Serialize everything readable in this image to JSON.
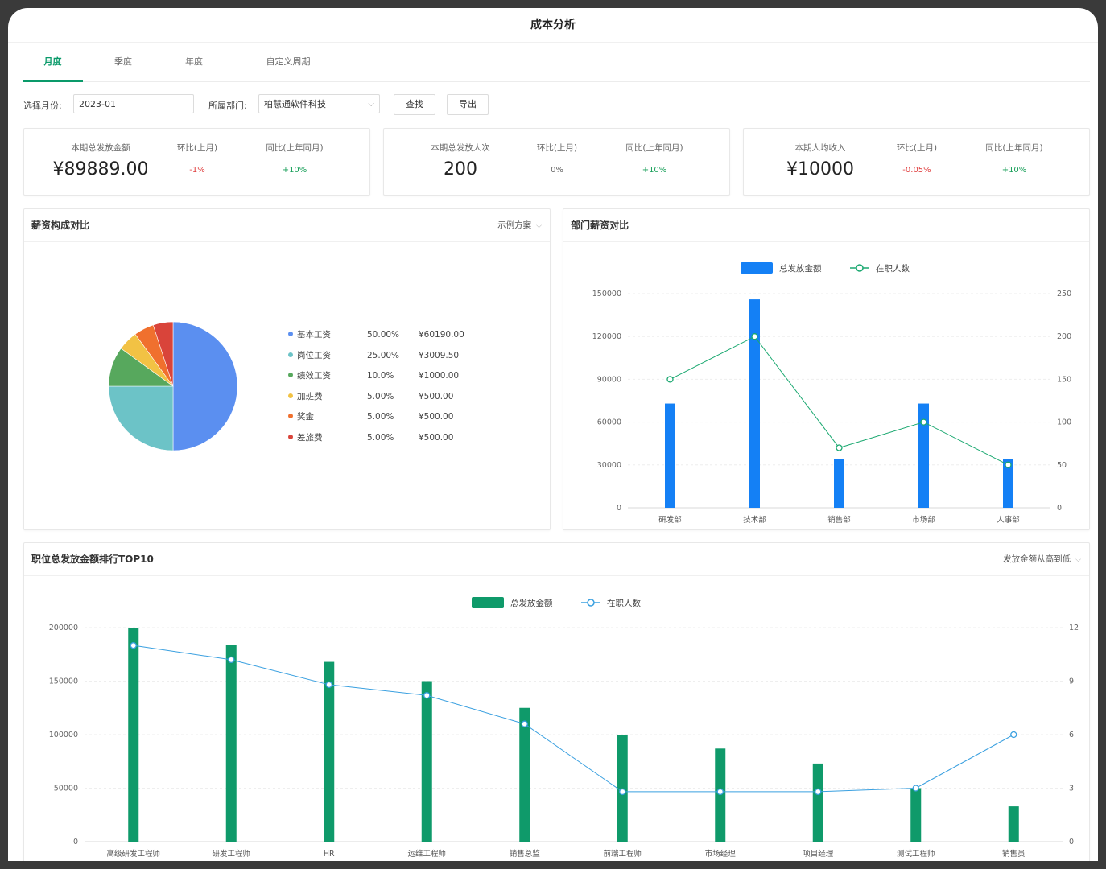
{
  "page": {
    "title": "成本分析"
  },
  "tabs": [
    {
      "label": "月度",
      "active": true
    },
    {
      "label": "季度",
      "active": false
    },
    {
      "label": "年度",
      "active": false
    },
    {
      "label": "自定义周期",
      "active": false
    }
  ],
  "filters": {
    "month_label": "选择月份:",
    "month_value": "2023-01",
    "dept_label": "所属部门:",
    "dept_value": "柏慧通软件科技",
    "search_button": "查找",
    "export_button": "导出"
  },
  "kpis": [
    {
      "label": "本期总发放金额",
      "value": "¥89889.00",
      "mom_label": "环比(上月)",
      "mom_value": "-1%",
      "mom_color": "#e04040",
      "yoy_label": "同比(上年同月)",
      "yoy_value": "+10%",
      "yoy_color": "#19a05a"
    },
    {
      "label": "本期总发放人次",
      "value": "200",
      "mom_label": "环比(上月)",
      "mom_value": "0%",
      "mom_color": "#666666",
      "yoy_label": "同比(上年同月)",
      "yoy_value": "+10%",
      "yoy_color": "#19a05a"
    },
    {
      "label": "本期人均收入",
      "value": "¥10000",
      "mom_label": "环比(上月)",
      "mom_value": "-0.05%",
      "mom_color": "#e04040",
      "yoy_label": "同比(上年同月)",
      "yoy_value": "+10%",
      "yoy_color": "#19a05a"
    }
  ],
  "salary_panel": {
    "title": "薪资构成对比",
    "option": "示例方案"
  },
  "dept_panel": {
    "title": "部门薪资对比"
  },
  "top_panel": {
    "title": "职位总发放金额排行TOP10",
    "option": "发放金额从高到低"
  },
  "chart_data": [
    {
      "type": "pie",
      "labels": [
        "基本工资",
        "岗位工资",
        "绩效工资",
        "加班费",
        "奖金",
        "差旅费"
      ],
      "percent_labels": [
        "50.00%",
        "25.00%",
        "10.0%",
        "5.00%",
        "5.00%",
        "5.00%"
      ],
      "values": [
        50,
        25,
        10,
        5,
        5,
        5
      ],
      "amount_labels": [
        "¥60190.00",
        "¥3009.50",
        "¥1000.00",
        "¥500.00",
        "¥500.00",
        "¥500.00"
      ],
      "colors": [
        "#5b8ff0",
        "#6cc3c7",
        "#57a85d",
        "#f2c244",
        "#f0702e",
        "#d9443a"
      ]
    },
    {
      "type": "bar",
      "categories": [
        "研发部",
        "技术部",
        "销售部",
        "市场部",
        "人事部"
      ],
      "series": [
        {
          "name": "总发放金额",
          "axis": "left",
          "color": "#1480f5",
          "values": [
            73000,
            146000,
            34000,
            73000,
            34000
          ]
        },
        {
          "name": "在职人数",
          "axis": "right",
          "color": "#1aa870",
          "values": [
            150,
            200,
            70,
            100,
            50
          ]
        }
      ],
      "ylim_left": [
        0,
        150000
      ],
      "yticks_left": [
        "0",
        "30000",
        "60000",
        "90000",
        "120000",
        "150000"
      ],
      "ylim_right": [
        0,
        250
      ],
      "yticks_right": [
        "0",
        "50",
        "100",
        "150",
        "200",
        "250"
      ]
    },
    {
      "type": "bar",
      "categories": [
        "高级研发工程师",
        "研发工程师",
        "HR",
        "运维工程师",
        "销售总监",
        "前端工程师",
        "市场经理",
        "项目经理",
        "测试工程师",
        "销售员"
      ],
      "series": [
        {
          "name": "总发放金额",
          "axis": "left",
          "color": "#0f9a6a",
          "values": [
            200000,
            184000,
            168000,
            150000,
            125000,
            100000,
            87000,
            73000,
            50000,
            33000
          ]
        },
        {
          "name": "在职人数",
          "axis": "right",
          "color": "#3aa0e0",
          "values": [
            11,
            10.2,
            8.8,
            8.2,
            6.6,
            2.8,
            2.8,
            2.8,
            3,
            6
          ]
        }
      ],
      "ylim_left": [
        0,
        200000
      ],
      "yticks_left": [
        "0",
        "50000",
        "100000",
        "150000",
        "200000"
      ],
      "ylim_right": [
        0,
        12
      ],
      "yticks_right": [
        "0",
        "3",
        "6",
        "9",
        "12"
      ]
    }
  ]
}
